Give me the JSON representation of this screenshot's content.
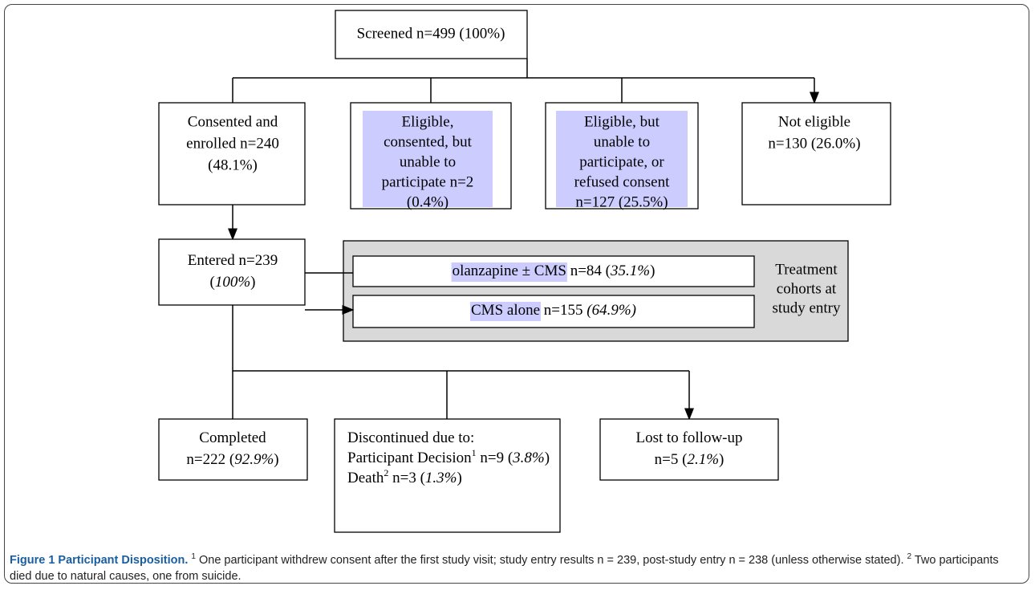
{
  "nodes": {
    "screened": [
      "Screened n=499 (100%)"
    ],
    "consented": [
      "Consented and",
      "enrolled n=240",
      "(48.1%)"
    ],
    "eligible_consented": [
      "Eligible,",
      "consented, but",
      "unable to",
      "participate n=2",
      "(0.4%)"
    ],
    "eligible_refused": [
      "Eligible, but",
      "unable to",
      "participate, or",
      "refused consent",
      "n=127 (25.5%)"
    ],
    "not_eligible": [
      "Not eligible",
      "n=130 (26.0%)"
    ],
    "entered": [
      [
        "Entered n=239"
      ],
      [
        "(",
        "100%",
        ")"
      ]
    ],
    "olanzapine": [
      [
        "olanzapine ± CMS",
        " n=84 (",
        "35.1%",
        ")"
      ]
    ],
    "cms_alone": [
      [
        "CMS alone",
        " n=155 ",
        "(64.9%)"
      ]
    ],
    "treatment": [
      "Treatment",
      "cohorts at",
      "study entry"
    ],
    "completed": [
      [
        "Completed"
      ],
      [
        "n=222 (",
        "92.9%",
        ")"
      ]
    ],
    "discontinued": [
      [
        "Discontinued due to:"
      ],
      [
        "Participant Decision",
        "1",
        " n=9 (",
        "3.8%",
        ")"
      ],
      [
        "Death",
        "2",
        " n=3 (",
        "1.3%",
        ")"
      ]
    ],
    "lost": [
      [
        "Lost to follow-up"
      ],
      [
        "n=5 (",
        "2.1%",
        ")"
      ]
    ]
  },
  "caption": {
    "title": "Figure 1 Participant Disposition.",
    "note1_mark": "1",
    "note1": " One participant withdrew consent after the first study visit; study entry results n = 239, post-study entry n = 238 (unless otherwise stated).",
    "note2_mark": "2",
    "note2": " Two participants died due to natural causes, one from suicide."
  }
}
